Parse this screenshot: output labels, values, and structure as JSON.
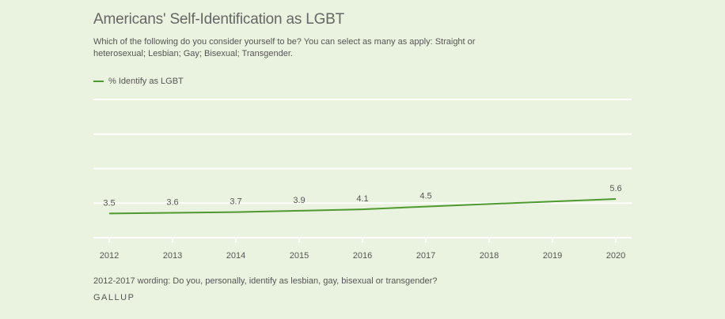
{
  "title": "Americans' Self-Identification as LGBT",
  "subtitle": "Which of the following do you consider yourself to be? You can select as many as apply: Straight or heterosexual; Lesbian; Gay; Bisexual; Transgender.",
  "footnote": "2012-2017 wording: Do you, personally, identify as lesbian, gay, bisexual or transgender?",
  "source": "GALLUP",
  "colors": {
    "line": "#4e9a2e",
    "background": "#eaf3df",
    "grid": "#ffffff"
  },
  "chart_data": {
    "type": "line",
    "x": [
      "2012",
      "2013",
      "2014",
      "2015",
      "2016",
      "2017",
      "2018",
      "2019",
      "2020"
    ],
    "series": [
      {
        "name": "% Identify as LGBT",
        "points": [
          {
            "x": 2012,
            "y": 3.5,
            "label": "3.5"
          },
          {
            "x": 2013,
            "y": 3.6,
            "label": "3.6"
          },
          {
            "x": 2014,
            "y": 3.7,
            "label": "3.7"
          },
          {
            "x": 2015,
            "y": 3.9,
            "label": "3.9"
          },
          {
            "x": 2016,
            "y": 4.1,
            "label": "4.1"
          },
          {
            "x": 2017,
            "y": 4.5,
            "label": "4.5"
          },
          {
            "x": 2020,
            "y": 5.6,
            "label": "5.6"
          }
        ]
      }
    ],
    "xlim": [
      2012,
      2020
    ],
    "ylim": [
      0,
      20
    ],
    "grid": true,
    "legend": "top-left"
  }
}
